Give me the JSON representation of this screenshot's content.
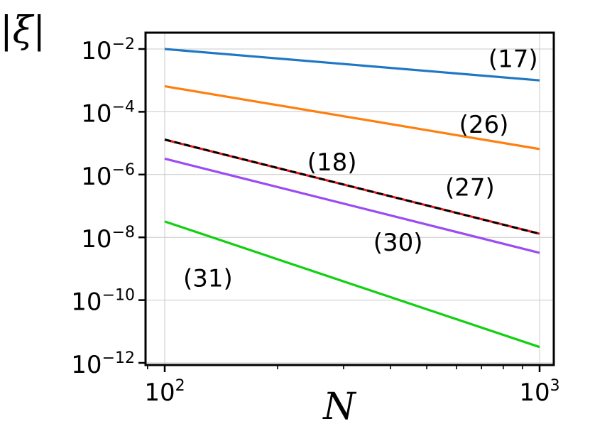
{
  "chart_data": {
    "type": "line",
    "xlabel": "N",
    "ylabel": "|ξ|",
    "xscale": "log",
    "yscale": "log",
    "xlim": [
      100,
      1000
    ],
    "ylim": [
      1e-12,
      0.01
    ],
    "grid": true,
    "x_ticks": [
      {
        "base": "10",
        "exp": "2",
        "value": 100
      },
      {
        "base": "10",
        "exp": "3",
        "value": 1000
      }
    ],
    "y_ticks": [
      {
        "base": "10",
        "exp": "−2",
        "value": 0.01
      },
      {
        "base": "10",
        "exp": "−4",
        "value": 0.0001
      },
      {
        "base": "10",
        "exp": "−6",
        "value": 1e-06
      },
      {
        "base": "10",
        "exp": "−8",
        "value": 1e-08
      },
      {
        "base": "10",
        "exp": "−10",
        "value": 1e-10
      },
      {
        "base": "10",
        "exp": "−12",
        "value": 1e-12
      }
    ],
    "series": [
      {
        "label": "(17)",
        "color": "#1f77c4",
        "x": [
          100,
          1000
        ],
        "y": [
          0.01,
          0.001
        ]
      },
      {
        "label": "(26)",
        "color": "#ff7f0e",
        "x": [
          100,
          1000
        ],
        "y": [
          0.00065,
          6.5e-06
        ]
      },
      {
        "label": "(18)",
        "color": "#e41a1c",
        "x": [
          100,
          1000
        ],
        "y": [
          1.3e-05,
          1.3e-08
        ]
      },
      {
        "label": "(27)",
        "color": "#000000",
        "dashed": true,
        "x": [
          100,
          1000
        ],
        "y": [
          1.3e-05,
          1.3e-08
        ]
      },
      {
        "label": "(30)",
        "color": "#9a4cf0",
        "x": [
          100,
          1000
        ],
        "y": [
          3.2e-06,
          3.2e-09
        ]
      },
      {
        "label": "(31)",
        "color": "#11d011",
        "x": [
          100,
          1000
        ],
        "y": [
          3.2e-08,
          3.2e-12
        ]
      }
    ],
    "annotations": [
      {
        "text": "(17)",
        "x": 730,
        "y": 0.005
      },
      {
        "text": "(26)",
        "x": 610,
        "y": 4e-05
      },
      {
        "text": "(18)",
        "x": 240,
        "y": 2.5e-06
      },
      {
        "text": "(27)",
        "x": 560,
        "y": 4e-07
      },
      {
        "text": "(30)",
        "x": 360,
        "y": 7e-09
      },
      {
        "text": "(31)",
        "x": 112,
        "y": 5e-10
      }
    ]
  }
}
